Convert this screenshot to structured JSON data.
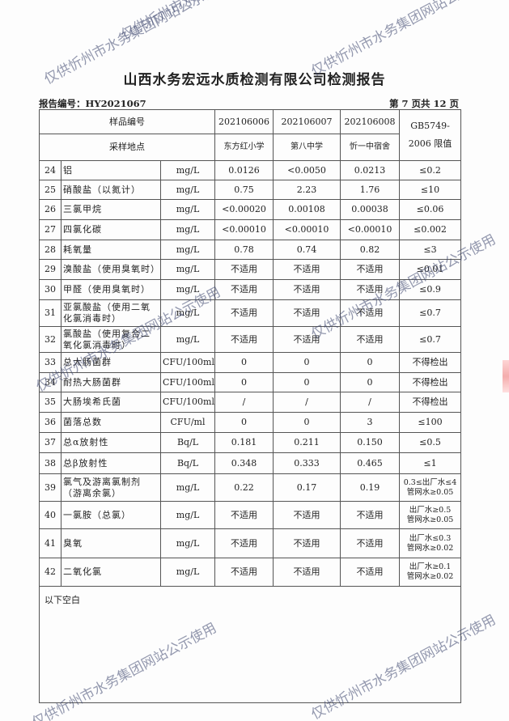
{
  "title": "山西水务宏远水质检测有限公司检测报告",
  "report_no": "报告编号：HY2021067",
  "page_info": "第 7 页共 12 页",
  "watermark": "仅供忻州市水务集团网站公示使用",
  "header": {
    "sample_no_label": "样品编号",
    "site_label": "采样地点",
    "samples": [
      "202106006",
      "202106007",
      "202106008"
    ],
    "sites": [
      "东方红小学",
      "第八中学",
      "忻一中宿舍"
    ],
    "standard": "GB5749-2006 限值"
  },
  "rows": [
    {
      "no": "24",
      "item": "铝",
      "unit": "mg/L",
      "v": [
        "0.0126",
        "<0.0050",
        "0.0213"
      ],
      "limit": "≤0.2"
    },
    {
      "no": "25",
      "item": "硝酸盐（以氮计）",
      "unit": "mg/L",
      "v": [
        "0.75",
        "2.23",
        "1.76"
      ],
      "limit": "≤10"
    },
    {
      "no": "26",
      "item": "三氯甲烷",
      "unit": "mg/L",
      "v": [
        "<0.00020",
        "0.00108",
        "0.00038"
      ],
      "limit": "≤0.06"
    },
    {
      "no": "27",
      "item": "四氯化碳",
      "unit": "mg/L",
      "v": [
        "<0.00010",
        "<0.00010",
        "<0.00010"
      ],
      "limit": "≤0.002"
    },
    {
      "no": "28",
      "item": "耗氧量",
      "unit": "mg/L",
      "v": [
        "0.78",
        "0.74",
        "0.82"
      ],
      "limit": "≤3"
    },
    {
      "no": "29",
      "item": "溴酸盐（使用臭氧时）",
      "unit": "mg/L",
      "v": [
        "不适用",
        "不适用",
        "不适用"
      ],
      "limit": "≤0.01"
    },
    {
      "no": "30",
      "item": "甲醛（使用臭氧时）",
      "unit": "mg/L",
      "v": [
        "不适用",
        "不适用",
        "不适用"
      ],
      "limit": "≤0.9"
    },
    {
      "no": "31",
      "item": "亚氯酸盐（使用二氧化氯消毒时）",
      "unit": "mg/L",
      "v": [
        "不适用",
        "不适用",
        "不适用"
      ],
      "limit": "≤0.7"
    },
    {
      "no": "32",
      "item": "氯酸盐（使用复合二氧化氯消毒时）",
      "unit": "mg/L",
      "v": [
        "不适用",
        "不适用",
        "不适用"
      ],
      "limit": "≤0.7"
    },
    {
      "no": "33",
      "item": "总大肠菌群",
      "unit": "CFU/100ml",
      "v": [
        "0",
        "0",
        "0"
      ],
      "limit": "不得检出"
    },
    {
      "no": "34",
      "item": "耐热大肠菌群",
      "unit": "CFU/100ml",
      "v": [
        "0",
        "0",
        "0"
      ],
      "limit": "不得检出"
    },
    {
      "no": "35",
      "item": "大肠埃希氏菌",
      "unit": "CFU/100ml",
      "v": [
        "/",
        "/",
        "/"
      ],
      "limit": "不得检出"
    },
    {
      "no": "36",
      "item": "菌落总数",
      "unit": "CFU/ml",
      "v": [
        "0",
        "0",
        "3"
      ],
      "limit": "≤100"
    },
    {
      "no": "37",
      "item": "总α放射性",
      "unit": "Bq/L",
      "v": [
        "0.181",
        "0.211",
        "0.150"
      ],
      "limit": "≤0.5"
    },
    {
      "no": "38",
      "item": "总β放射性",
      "unit": "Bq/L",
      "v": [
        "0.348",
        "0.333",
        "0.465"
      ],
      "limit": "≤1"
    },
    {
      "no": "39",
      "item": "氯气及游离氯制剂（游离余氯）",
      "unit": "mg/L",
      "v": [
        "0.22",
        "0.17",
        "0.19"
      ],
      "limit": "0.3≤出厂水≤4",
      "limit2": "管网水≥0.05"
    },
    {
      "no": "40",
      "item": "一氯胺（总氯）",
      "unit": "mg/L",
      "v": [
        "不适用",
        "不适用",
        "不适用"
      ],
      "limit": "出厂水≥0.5",
      "limit2": "管网水≥0.05"
    },
    {
      "no": "41",
      "item": "臭氧",
      "unit": "mg/L",
      "v": [
        "不适用",
        "不适用",
        "不适用"
      ],
      "limit": "出厂水≤0.3",
      "limit2": "管网水≥0.02"
    },
    {
      "no": "42",
      "item": "二氧化氯",
      "unit": "mg/L",
      "v": [
        "不适用",
        "不适用",
        "不适用"
      ],
      "limit": "出厂水≥0.1",
      "limit2": "管网水≥0.02"
    }
  ],
  "footer_note": "以下空白"
}
